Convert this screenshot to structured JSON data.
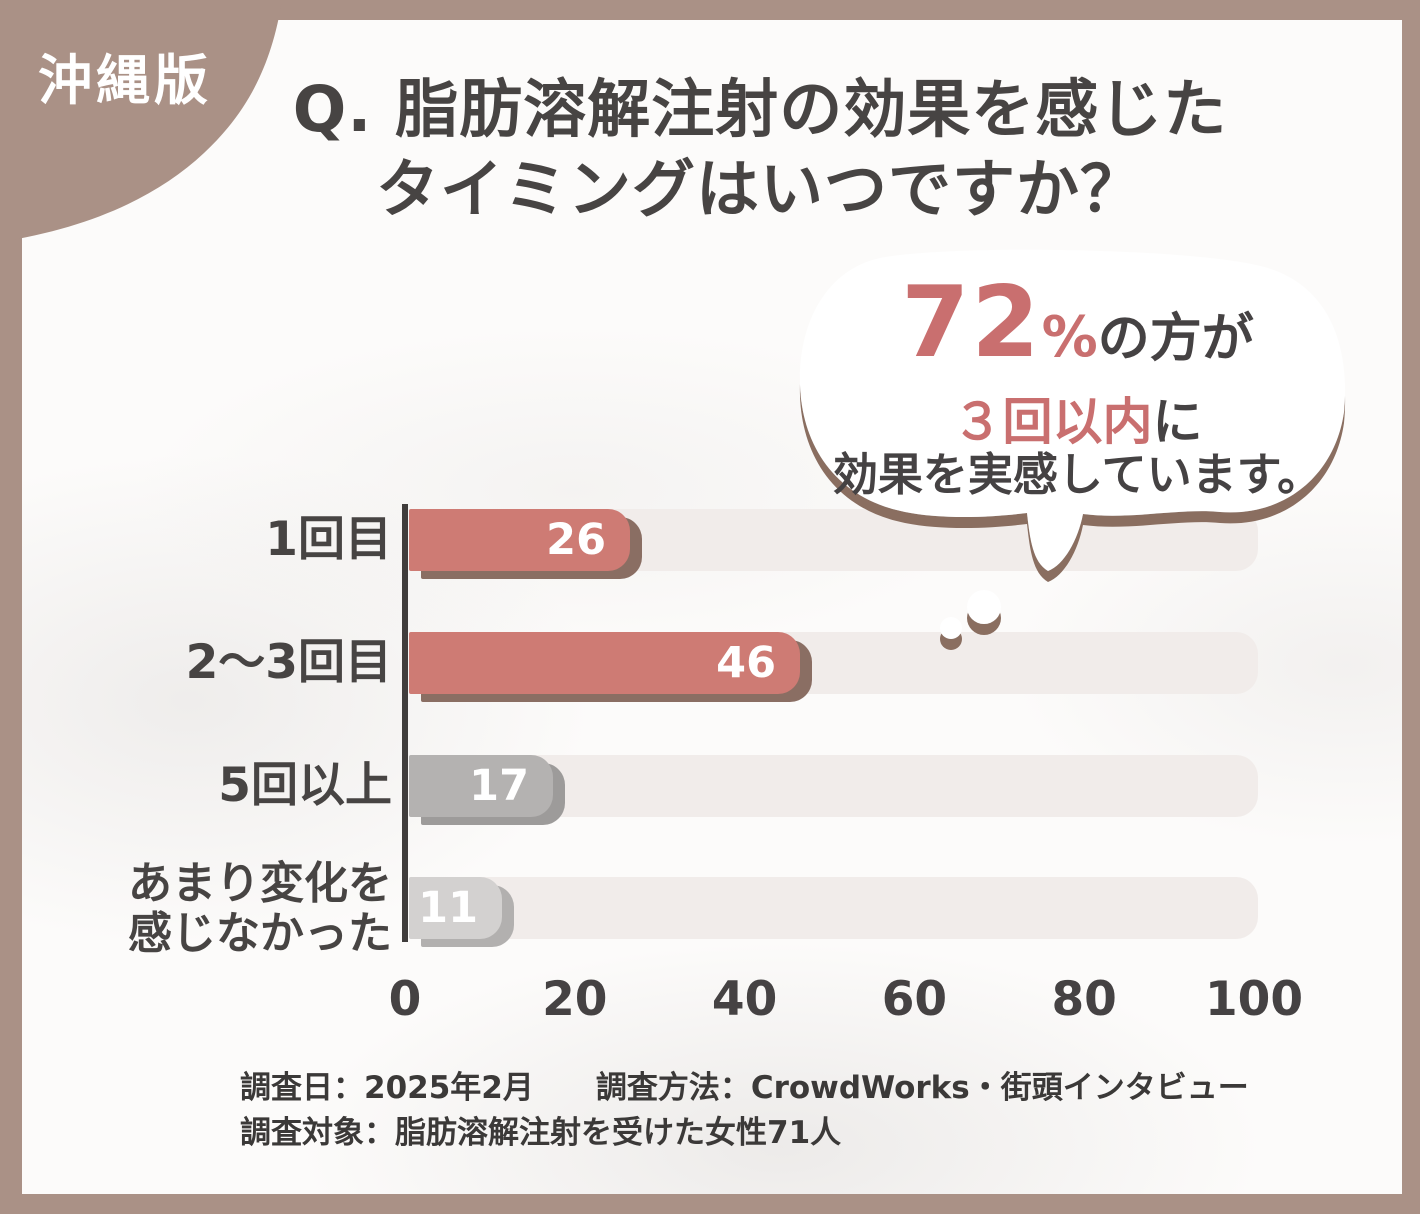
{
  "badge": {
    "label": "沖縄版"
  },
  "title": {
    "line1": "Q. 脂肪溶解注射の効果を感じた",
    "line2": "タイミングはいつですか？"
  },
  "bubble": {
    "stat": "72",
    "stat_percent": "%",
    "stat_suffix": "の方が",
    "highlight": "３回以内",
    "highlight_suffix": "に",
    "line3": "効果を実感しています。"
  },
  "chart_data": {
    "type": "bar",
    "orientation": "horizontal",
    "title": "Q. 脂肪溶解注射の効果を感じたタイミングはいつですか？",
    "categories": [
      "1回目",
      "2〜3回目",
      "5回以上",
      "あまり変化を感じなかった"
    ],
    "category_label_lines": [
      [
        "1回目"
      ],
      [
        "2〜3回目"
      ],
      [
        "5回以上"
      ],
      [
        "あまり変化を",
        "感じなかった"
      ]
    ],
    "values": [
      26,
      46,
      17,
      11
    ],
    "xlim": [
      0,
      100
    ],
    "x_ticks": [
      "0",
      "20",
      "40",
      "60",
      "80",
      "100"
    ],
    "grid": false,
    "legend": "none"
  },
  "footer": {
    "line1": "調査日：2025年2月　　調査方法：CrowdWorks・街頭インタビュー",
    "line2": "調査対象：脂肪溶解注射を受けた女性71人"
  },
  "colors": {
    "frame_brown": "#aa9186",
    "bubble_shadow_brown": "#8a6e60",
    "accent_red": "#c96f6f",
    "bar_colors": [
      "#ce7b74",
      "#ce7b74",
      "#b4b2b1",
      "#d3d1d0"
    ],
    "bar_shadow_colors": [
      "#8a6e63",
      "#8a6e63",
      "#9d9b9a",
      "#b2b0af"
    ],
    "track": "#f1ecea",
    "dark_text": "#454243",
    "value_text": "#ffffff"
  }
}
